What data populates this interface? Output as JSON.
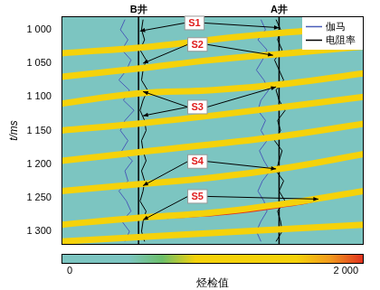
{
  "chart_data": {
    "type": "seismic_section",
    "y_label": "t/ms",
    "ylim": [
      1320,
      980
    ],
    "yticks": [
      {
        "value": 1000,
        "label": "1 000"
      },
      {
        "value": 1050,
        "label": "1 050"
      },
      {
        "value": 1100,
        "label": "1 100"
      },
      {
        "value": 1150,
        "label": "1 150"
      },
      {
        "value": 1200,
        "label": "1 200"
      },
      {
        "value": 1250,
        "label": "1 250"
      },
      {
        "value": 1300,
        "label": "1 300"
      }
    ],
    "xlim": [
      0,
      100
    ],
    "tick_labels": "y",
    "grid": false,
    "legend": "upper right",
    "background": "#7cc5c1",
    "wells": [
      {
        "name": "B井",
        "x": 25.5
      },
      {
        "name": "A井",
        "x": 72
      }
    ],
    "t": [
      985,
      1000,
      1015,
      1030,
      1045,
      1060,
      1075,
      1090,
      1105,
      1120,
      1135,
      1150,
      1165,
      1180,
      1195,
      1210,
      1225,
      1240,
      1255,
      1270,
      1285,
      1300,
      1315
    ],
    "series": [
      {
        "name": "伽马",
        "color": "#4a5cb8",
        "line_style": "solid",
        "x_by_well": [
          [
            21,
            19.5,
            22,
            20,
            23,
            21.5,
            19,
            22.5,
            20.5,
            24,
            21,
            19.5,
            22,
            20,
            23.5,
            21,
            22,
            19,
            21.5,
            23,
            20,
            22.5,
            21
          ],
          [
            66,
            67.5,
            65,
            68,
            66.5,
            64.5,
            67,
            68.5,
            66,
            65,
            67.5,
            66,
            68,
            65.5,
            67,
            69,
            66.5,
            65,
            67,
            68,
            66,
            64.5,
            66
          ]
        ]
      },
      {
        "name": "电阻率",
        "color": "#000000",
        "line_style": "solid",
        "x_by_well": [
          [
            27,
            26.5,
            27.5,
            26,
            28,
            27,
            26.5,
            28.5,
            27,
            26,
            27.5,
            28,
            26.5,
            27,
            28,
            26.5,
            27.5,
            27,
            26,
            28,
            27,
            26.5,
            27.5
          ],
          [
            71,
            72.5,
            71.5,
            73,
            70.5,
            72,
            73.5,
            71,
            72,
            74,
            71.5,
            72.5,
            70.5,
            73,
            72,
            71,
            73.5,
            72,
            74,
            71.5,
            72.5,
            73,
            71
          ]
        ]
      }
    ],
    "events": {
      "color": "#f5d20a",
      "lines": [
        {
          "x": [
            0,
            30,
            60,
            100
          ],
          "t": [
            1035,
            1025,
            1010,
            995
          ]
        },
        {
          "x": [
            0,
            25,
            50,
            75,
            100
          ],
          "t": [
            1070,
            1058,
            1045,
            1035,
            1025
          ]
        },
        {
          "x": [
            0,
            25,
            50,
            75,
            100
          ],
          "t": [
            1110,
            1095,
            1090,
            1080,
            1065
          ]
        },
        {
          "x": [
            0,
            25,
            55,
            100
          ],
          "t": [
            1150,
            1140,
            1125,
            1100
          ]
        },
        {
          "x": [
            0,
            30,
            70,
            100
          ],
          "t": [
            1195,
            1180,
            1160,
            1140
          ]
        },
        {
          "x": [
            0,
            25,
            50,
            75,
            100
          ],
          "t": [
            1240,
            1230,
            1220,
            1205,
            1185
          ]
        },
        {
          "x": [
            0,
            25,
            50,
            75,
            100
          ],
          "t": [
            1290,
            1280,
            1272,
            1258,
            1240
          ]
        },
        {
          "x": [
            0,
            40,
            100
          ],
          "t": [
            1315,
            1305,
            1290
          ]
        }
      ]
    },
    "anomalies": {
      "color": "#e03020",
      "lines": [
        {
          "x": [
            55,
            68,
            78
          ],
          "t": [
            1043,
            1038,
            1033
          ]
        },
        {
          "x": [
            35,
            55,
            75,
            85
          ],
          "t": [
            1278,
            1272,
            1260,
            1252
          ]
        }
      ]
    },
    "annotations": [
      {
        "text": "S1",
        "x": 44,
        "t": 990,
        "targets": [
          [
            26,
            1002
          ],
          [
            72,
            997
          ]
        ]
      },
      {
        "text": "S2",
        "x": 45,
        "t": 1022,
        "targets": [
          [
            27,
            1050
          ],
          [
            70,
            1038
          ]
        ]
      },
      {
        "text": "S3",
        "x": 45,
        "t": 1115,
        "targets": [
          [
            27,
            1092
          ],
          [
            27,
            1128
          ],
          [
            71,
            1085
          ]
        ]
      },
      {
        "text": "S4",
        "x": 45,
        "t": 1196,
        "targets": [
          [
            27,
            1232
          ],
          [
            71,
            1207
          ]
        ]
      },
      {
        "text": "S5",
        "x": 45,
        "t": 1248,
        "targets": [
          [
            27,
            1283
          ],
          [
            85,
            1252
          ]
        ]
      }
    ],
    "colorbar": {
      "range": [
        0,
        2000
      ],
      "ticks": [
        {
          "value": 0,
          "label": "0"
        },
        {
          "value": 2000,
          "label": "2 000"
        }
      ],
      "label": "烃检值",
      "colors": [
        "#7cc5c1",
        "#7cc5c1",
        "#7cc5c1",
        "#6cbf6a",
        "#f5d20a",
        "#f5d20a",
        "#f5d20a",
        "#f5d20a",
        "#f29a1e",
        "#e03020"
      ]
    }
  }
}
